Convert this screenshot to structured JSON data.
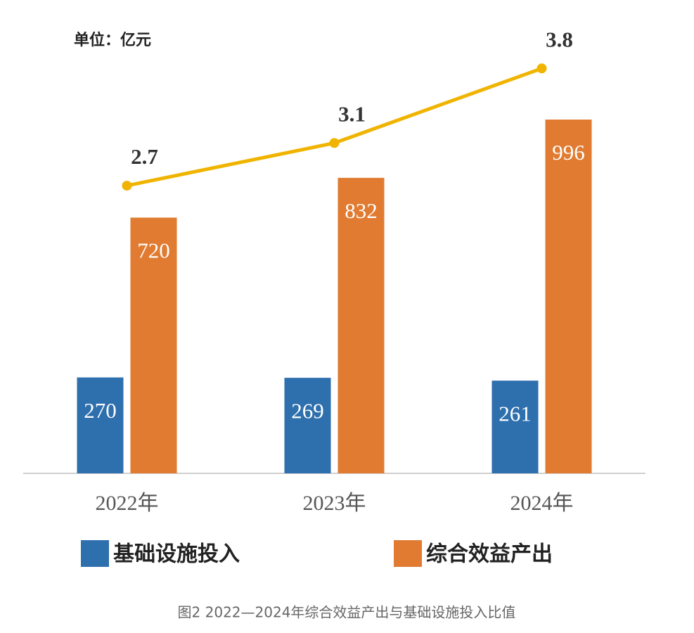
{
  "chart_data": {
    "type": "bar",
    "unit_label": "单位：亿元",
    "caption": "图2  2022—2024年综合效益产出与基础设施投入比值",
    "categories": [
      "2022年",
      "2023年",
      "2024年"
    ],
    "series": [
      {
        "name": "基础设施投入",
        "type": "bar",
        "color": "#2e6fad",
        "values": [
          270,
          269,
          261
        ]
      },
      {
        "name": "综合效益产出",
        "type": "bar",
        "color": "#e07b31",
        "values": [
          720,
          832,
          996
        ]
      },
      {
        "type": "line",
        "axis": "y2",
        "color": "#f0b400",
        "values": [
          2.7,
          3.1,
          3.8
        ]
      }
    ],
    "ylim": [
      0,
      1200
    ],
    "y2lim": [
      0,
      4
    ],
    "legend": "bottom"
  }
}
